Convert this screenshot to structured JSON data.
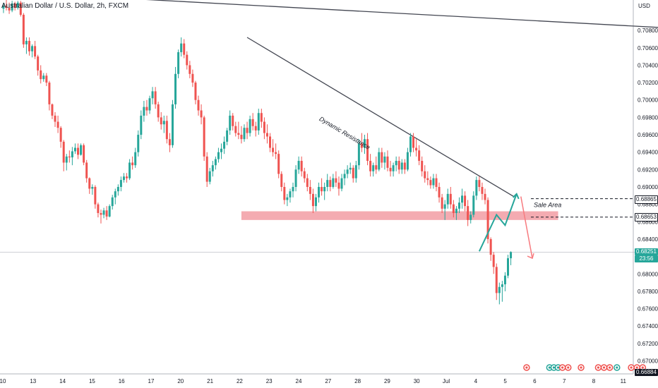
{
  "title": "Australian Dollar / U.S. Dollar, 2h, FXCM",
  "currency": "USD",
  "colors": {
    "up": "#26a69a",
    "down": "#ef5350",
    "line": "#434651",
    "zone": "#f08f97",
    "arrow_up": "#26a69a",
    "arrow_down": "#f77c80",
    "price_badge": "#26a69a",
    "level_badge": "#ffffff",
    "last_badge": "#000000"
  },
  "chart_data": {
    "type": "candlestick",
    "title": "Australian Dollar / U.S. Dollar, 2h, FXCM",
    "ylabel": "USD",
    "ylim": [
      0.6685,
      0.7115
    ],
    "y_ticks": [
      "0.70800",
      "0.70600",
      "0.70400",
      "0.70200",
      "0.70000",
      "0.69800",
      "0.69600",
      "0.69400",
      "0.69200",
      "0.69000",
      "0.68800",
      "0.68600",
      "0.68400",
      "0.68200",
      "0.68000",
      "0.67800",
      "0.67600",
      "0.67400",
      "0.67200",
      "0.67000"
    ],
    "x_ticks": [
      "10",
      "13",
      "14",
      "15",
      "16",
      "17",
      "20",
      "21",
      "22",
      "23",
      "24",
      "27",
      "28",
      "29",
      "30",
      "Jul",
      "4",
      "5",
      "6",
      "7",
      "8",
      "11"
    ],
    "price_labels": {
      "level_1": "0.68865",
      "level_2": "0.68653",
      "current": "0.68251",
      "countdown": "23:56",
      "last": "0.66884"
    },
    "annotations": {
      "trendline_label": "Dynamic Resistance",
      "zone_label": "Sale Area"
    },
    "trendlines": [
      {
        "name": "Dynamic Resistance",
        "from": [
          16.8,
          0.7072
        ],
        "to": [
          35.4,
          0.6889
        ]
      },
      {
        "name": "upper",
        "from": [
          8.1,
          0.7117
        ],
        "to": [
          51.6,
          0.7078
        ]
      }
    ],
    "zone": {
      "from": 16.4,
      "to": 38.5,
      "y_top": 0.6872,
      "y_bottom": 0.6862
    },
    "projection_up": [
      [
        33.0,
        0.6826
      ],
      [
        34.2,
        0.6868
      ],
      [
        34.8,
        0.6856
      ],
      [
        35.6,
        0.6892
      ]
    ],
    "projection_down": [
      [
        35.9,
        0.6889
      ],
      [
        36.7,
        0.6818
      ]
    ],
    "sale_levels": [
      0.68865,
      0.68653
    ],
    "current_price": 0.68251,
    "candles": [
      [
        -0.2,
        0.7105,
        0.7112,
        0.71,
        0.7108
      ],
      [
        0.0,
        0.7108,
        0.7115,
        0.7103,
        0.7106
      ],
      [
        0.2,
        0.7106,
        0.7112,
        0.7099,
        0.7103
      ],
      [
        0.4,
        0.7103,
        0.7114,
        0.7101,
        0.7111
      ],
      [
        0.6,
        0.7111,
        0.7113,
        0.7103,
        0.7106
      ],
      [
        0.8,
        0.7106,
        0.7114,
        0.7104,
        0.7112
      ],
      [
        1.0,
        0.7112,
        0.7114,
        0.7096,
        0.7098
      ],
      [
        1.2,
        0.7098,
        0.71,
        0.706,
        0.7064
      ],
      [
        1.4,
        0.7064,
        0.7072,
        0.7053,
        0.7068
      ],
      [
        1.6,
        0.7068,
        0.7072,
        0.7051,
        0.7056
      ],
      [
        1.8,
        0.7056,
        0.7064,
        0.7049,
        0.7062
      ],
      [
        2.0,
        0.7062,
        0.7068,
        0.7047,
        0.705
      ],
      [
        2.2,
        0.705,
        0.7052,
        0.7028,
        0.7034
      ],
      [
        2.4,
        0.7034,
        0.704,
        0.7019,
        0.7024
      ],
      [
        2.6,
        0.7024,
        0.7031,
        0.7021,
        0.7028
      ],
      [
        2.8,
        0.7028,
        0.7031,
        0.7016,
        0.702
      ],
      [
        3.0,
        0.702,
        0.7022,
        0.6988,
        0.6995
      ],
      [
        3.2,
        0.6995,
        0.6996,
        0.6978,
        0.6982
      ],
      [
        3.4,
        0.6982,
        0.6986,
        0.6969,
        0.6975
      ],
      [
        3.6,
        0.6975,
        0.6982,
        0.6962,
        0.6968
      ],
      [
        3.8,
        0.6968,
        0.697,
        0.6945,
        0.6952
      ],
      [
        4.0,
        0.6952,
        0.6954,
        0.6918,
        0.6928
      ],
      [
        4.2,
        0.6928,
        0.6938,
        0.6919,
        0.6935
      ],
      [
        4.4,
        0.6935,
        0.6942,
        0.6928,
        0.6934
      ],
      [
        4.6,
        0.6934,
        0.6946,
        0.6925,
        0.6941
      ],
      [
        4.8,
        0.6941,
        0.695,
        0.6938,
        0.6945
      ],
      [
        5.0,
        0.6945,
        0.695,
        0.6932,
        0.6937
      ],
      [
        5.2,
        0.6937,
        0.695,
        0.6936,
        0.6948
      ],
      [
        5.4,
        0.6948,
        0.695,
        0.6925,
        0.6928
      ],
      [
        5.6,
        0.6928,
        0.6931,
        0.6905,
        0.691
      ],
      [
        5.8,
        0.691,
        0.6911,
        0.6892,
        0.6898
      ],
      [
        6.0,
        0.6898,
        0.6903,
        0.6891,
        0.69
      ],
      [
        6.2,
        0.69,
        0.6902,
        0.6875,
        0.688
      ],
      [
        6.4,
        0.688,
        0.6882,
        0.6865,
        0.687
      ],
      [
        6.6,
        0.687,
        0.6874,
        0.6858,
        0.6868
      ],
      [
        6.8,
        0.6868,
        0.6876,
        0.6864,
        0.6873
      ],
      [
        7.0,
        0.6873,
        0.6878,
        0.6862,
        0.6866
      ],
      [
        7.2,
        0.6866,
        0.688,
        0.6865,
        0.6878
      ],
      [
        7.4,
        0.6878,
        0.6891,
        0.6874,
        0.6888
      ],
      [
        7.6,
        0.6888,
        0.6898,
        0.688,
        0.6895
      ],
      [
        7.8,
        0.6895,
        0.6903,
        0.689,
        0.69
      ],
      [
        8.0,
        0.69,
        0.6912,
        0.6895,
        0.6908
      ],
      [
        8.2,
        0.6908,
        0.6916,
        0.6905,
        0.6912
      ],
      [
        8.4,
        0.6912,
        0.6916,
        0.6905,
        0.691
      ],
      [
        8.6,
        0.691,
        0.6932,
        0.6908,
        0.6928
      ],
      [
        8.8,
        0.6928,
        0.6935,
        0.692,
        0.6925
      ],
      [
        9.0,
        0.6925,
        0.6945,
        0.6922,
        0.694
      ],
      [
        9.2,
        0.694,
        0.6965,
        0.6935,
        0.696
      ],
      [
        9.4,
        0.696,
        0.6988,
        0.6955,
        0.6982
      ],
      [
        9.6,
        0.6982,
        0.6999,
        0.6975,
        0.6992
      ],
      [
        9.8,
        0.6992,
        0.7,
        0.6982,
        0.6988
      ],
      [
        10.0,
        0.6988,
        0.7005,
        0.6984,
        0.7002
      ],
      [
        10.2,
        0.7002,
        0.7015,
        0.6995,
        0.701
      ],
      [
        10.4,
        0.701,
        0.7015,
        0.699,
        0.6995
      ],
      [
        10.6,
        0.6995,
        0.6998,
        0.6975,
        0.698
      ],
      [
        10.8,
        0.698,
        0.6986,
        0.6966,
        0.6972
      ],
      [
        11.0,
        0.6972,
        0.6982,
        0.6962,
        0.6976
      ],
      [
        11.2,
        0.6976,
        0.6982,
        0.695,
        0.6955
      ],
      [
        11.4,
        0.6955,
        0.6962,
        0.694,
        0.6948
      ],
      [
        11.6,
        0.6948,
        0.7,
        0.6945,
        0.6995
      ],
      [
        11.8,
        0.6995,
        0.7038,
        0.699,
        0.703
      ],
      [
        12.0,
        0.703,
        0.7058,
        0.7025,
        0.7055
      ],
      [
        12.2,
        0.7055,
        0.7072,
        0.705,
        0.7065
      ],
      [
        12.4,
        0.7065,
        0.707,
        0.7048,
        0.7052
      ],
      [
        12.6,
        0.7052,
        0.7056,
        0.7035,
        0.704
      ],
      [
        12.8,
        0.704,
        0.7045,
        0.7025,
        0.703
      ],
      [
        13.0,
        0.703,
        0.7035,
        0.7015,
        0.702
      ],
      [
        13.2,
        0.702,
        0.7022,
        0.6995,
        0.7
      ],
      [
        13.4,
        0.7,
        0.7005,
        0.6982,
        0.6988
      ],
      [
        13.6,
        0.6988,
        0.6995,
        0.6972,
        0.698
      ],
      [
        13.8,
        0.698,
        0.6982,
        0.693,
        0.6935
      ],
      [
        14.0,
        0.6935,
        0.694,
        0.69,
        0.6906
      ],
      [
        14.2,
        0.6906,
        0.6922,
        0.6903,
        0.6918
      ],
      [
        14.4,
        0.6918,
        0.693,
        0.6912,
        0.6925
      ],
      [
        14.6,
        0.6925,
        0.6935,
        0.692,
        0.6932
      ],
      [
        14.8,
        0.6932,
        0.6945,
        0.6928,
        0.694
      ],
      [
        15.0,
        0.694,
        0.695,
        0.6932,
        0.6944
      ],
      [
        15.2,
        0.6944,
        0.6958,
        0.6938,
        0.6952
      ],
      [
        15.4,
        0.6952,
        0.6968,
        0.6948,
        0.6965
      ],
      [
        15.6,
        0.6965,
        0.6988,
        0.696,
        0.6982
      ],
      [
        15.8,
        0.6982,
        0.6985,
        0.6965,
        0.697
      ],
      [
        16.0,
        0.697,
        0.6975,
        0.6958,
        0.6962
      ],
      [
        16.2,
        0.6962,
        0.6975,
        0.6955,
        0.696
      ],
      [
        16.4,
        0.696,
        0.697,
        0.695,
        0.6955
      ],
      [
        16.6,
        0.6955,
        0.6972,
        0.6952,
        0.6968
      ],
      [
        16.8,
        0.6968,
        0.6975,
        0.6955,
        0.6962
      ],
      [
        17.0,
        0.6962,
        0.6982,
        0.6958,
        0.6978
      ],
      [
        17.2,
        0.6978,
        0.6985,
        0.6965,
        0.697
      ],
      [
        17.4,
        0.697,
        0.6975,
        0.6958,
        0.6965
      ],
      [
        17.6,
        0.6965,
        0.699,
        0.696,
        0.6985
      ],
      [
        17.8,
        0.6985,
        0.699,
        0.6968,
        0.6975
      ],
      [
        18.0,
        0.6975,
        0.698,
        0.6955,
        0.6962
      ],
      [
        18.2,
        0.6962,
        0.6972,
        0.695,
        0.6958
      ],
      [
        18.4,
        0.6958,
        0.6962,
        0.694,
        0.6945
      ],
      [
        18.6,
        0.6945,
        0.6955,
        0.6935,
        0.694
      ],
      [
        18.8,
        0.694,
        0.695,
        0.6932,
        0.6938
      ],
      [
        19.0,
        0.6938,
        0.6942,
        0.691,
        0.6915
      ],
      [
        19.2,
        0.6915,
        0.6918,
        0.6895,
        0.69
      ],
      [
        19.4,
        0.69,
        0.6905,
        0.688,
        0.6885
      ],
      [
        19.6,
        0.6885,
        0.6892,
        0.6878,
        0.6888
      ],
      [
        19.8,
        0.6888,
        0.6898,
        0.6882,
        0.6895
      ],
      [
        20.0,
        0.6895,
        0.6905,
        0.6888,
        0.69
      ],
      [
        20.2,
        0.69,
        0.6925,
        0.6895,
        0.692
      ],
      [
        20.4,
        0.692,
        0.6935,
        0.6915,
        0.693
      ],
      [
        20.6,
        0.693,
        0.6935,
        0.6912,
        0.6918
      ],
      [
        20.8,
        0.6918,
        0.6922,
        0.6905,
        0.691
      ],
      [
        21.0,
        0.691,
        0.6915,
        0.6895,
        0.69
      ],
      [
        21.2,
        0.69,
        0.6908,
        0.6885,
        0.6892
      ],
      [
        21.4,
        0.6892,
        0.6898,
        0.687,
        0.6878
      ],
      [
        21.6,
        0.6878,
        0.6892,
        0.6872,
        0.6888
      ],
      [
        21.8,
        0.6888,
        0.6905,
        0.6882,
        0.69
      ],
      [
        22.0,
        0.69,
        0.691,
        0.689,
        0.6895
      ],
      [
        22.2,
        0.6895,
        0.6905,
        0.6885,
        0.69
      ],
      [
        22.4,
        0.69,
        0.6915,
        0.6895,
        0.6908
      ],
      [
        22.6,
        0.6908,
        0.6912,
        0.6895,
        0.69
      ],
      [
        22.8,
        0.69,
        0.6915,
        0.6898,
        0.691
      ],
      [
        23.0,
        0.691,
        0.6918,
        0.69,
        0.6905
      ],
      [
        23.2,
        0.6905,
        0.6912,
        0.689,
        0.6898
      ],
      [
        23.4,
        0.6898,
        0.6915,
        0.6895,
        0.691
      ],
      [
        23.6,
        0.691,
        0.692,
        0.6902,
        0.6915
      ],
      [
        23.8,
        0.6915,
        0.6925,
        0.691,
        0.692
      ],
      [
        24.0,
        0.692,
        0.6928,
        0.6915,
        0.6922
      ],
      [
        24.2,
        0.6922,
        0.6925,
        0.6905,
        0.691
      ],
      [
        24.4,
        0.691,
        0.693,
        0.6905,
        0.6925
      ],
      [
        24.6,
        0.6925,
        0.6955,
        0.692,
        0.695
      ],
      [
        24.8,
        0.695,
        0.6962,
        0.694,
        0.6945
      ],
      [
        25.0,
        0.6945,
        0.696,
        0.6938,
        0.6955
      ],
      [
        25.2,
        0.6955,
        0.6962,
        0.6925,
        0.693
      ],
      [
        25.4,
        0.693,
        0.6938,
        0.6912,
        0.6918
      ],
      [
        25.6,
        0.6918,
        0.6928,
        0.6912,
        0.6925
      ],
      [
        25.8,
        0.6925,
        0.6935,
        0.6915,
        0.692
      ],
      [
        26.0,
        0.692,
        0.6945,
        0.6918,
        0.694
      ],
      [
        26.2,
        0.694,
        0.6945,
        0.6922,
        0.6928
      ],
      [
        26.4,
        0.6928,
        0.694,
        0.692,
        0.6935
      ],
      [
        26.6,
        0.6935,
        0.6942,
        0.6918,
        0.6922
      ],
      [
        26.8,
        0.6922,
        0.693,
        0.6912,
        0.6918
      ],
      [
        27.0,
        0.6918,
        0.6928,
        0.6912,
        0.6925
      ],
      [
        27.2,
        0.6925,
        0.6935,
        0.6918,
        0.693
      ],
      [
        27.4,
        0.693,
        0.6935,
        0.6915,
        0.692
      ],
      [
        27.6,
        0.692,
        0.6932,
        0.6915,
        0.6928
      ],
      [
        27.8,
        0.6928,
        0.6932,
        0.6915,
        0.692
      ],
      [
        28.0,
        0.692,
        0.6945,
        0.6918,
        0.694
      ],
      [
        28.2,
        0.694,
        0.6962,
        0.6935,
        0.6958
      ],
      [
        28.4,
        0.6958,
        0.6962,
        0.694,
        0.6945
      ],
      [
        28.6,
        0.6945,
        0.6955,
        0.6935,
        0.6942
      ],
      [
        28.8,
        0.6942,
        0.6948,
        0.6925,
        0.693
      ],
      [
        29.0,
        0.693,
        0.6935,
        0.6912,
        0.6918
      ],
      [
        29.2,
        0.6918,
        0.6925,
        0.6905,
        0.691
      ],
      [
        29.4,
        0.691,
        0.6918,
        0.6902,
        0.6908
      ],
      [
        29.6,
        0.6908,
        0.6912,
        0.6898,
        0.6902
      ],
      [
        29.8,
        0.6902,
        0.6915,
        0.6898,
        0.691
      ],
      [
        30.0,
        0.691,
        0.6915,
        0.6895,
        0.69
      ],
      [
        30.2,
        0.69,
        0.6905,
        0.6882,
        0.6888
      ],
      [
        30.4,
        0.6888,
        0.6892,
        0.687,
        0.6875
      ],
      [
        30.6,
        0.6875,
        0.6885,
        0.6862,
        0.688
      ],
      [
        30.8,
        0.688,
        0.6898,
        0.6875,
        0.6892
      ],
      [
        31.0,
        0.6892,
        0.69,
        0.6875,
        0.688
      ],
      [
        31.2,
        0.688,
        0.6885,
        0.6865,
        0.687
      ],
      [
        31.4,
        0.687,
        0.6878,
        0.6862,
        0.6875
      ],
      [
        31.6,
        0.6875,
        0.6888,
        0.687,
        0.6882
      ],
      [
        31.8,
        0.6882,
        0.6898,
        0.6875,
        0.689
      ],
      [
        32.0,
        0.689,
        0.6895,
        0.6872,
        0.6878
      ],
      [
        32.2,
        0.6878,
        0.6885,
        0.6855,
        0.6862
      ],
      [
        32.4,
        0.6862,
        0.6872,
        0.6858,
        0.6868
      ],
      [
        32.6,
        0.6868,
        0.6895,
        0.6865,
        0.689
      ],
      [
        32.8,
        0.689,
        0.6912,
        0.6885,
        0.6908
      ],
      [
        33.0,
        0.6908,
        0.6912,
        0.6895,
        0.69
      ],
      [
        33.2,
        0.69,
        0.6905,
        0.6885,
        0.6892
      ],
      [
        33.4,
        0.6892,
        0.6898,
        0.688,
        0.6885
      ],
      [
        33.6,
        0.6885,
        0.6888,
        0.6835,
        0.684
      ],
      [
        33.8,
        0.684,
        0.6842,
        0.6815,
        0.6822
      ],
      [
        34.0,
        0.6822,
        0.6825,
        0.68,
        0.6808
      ],
      [
        34.2,
        0.6808,
        0.6812,
        0.677,
        0.6778
      ],
      [
        34.4,
        0.6778,
        0.679,
        0.6765,
        0.6785
      ],
      [
        34.6,
        0.6785,
        0.6792,
        0.6768,
        0.6788
      ],
      [
        34.8,
        0.6788,
        0.6802,
        0.678,
        0.6798
      ],
      [
        35.0,
        0.6798,
        0.6822,
        0.6795,
        0.6818
      ],
      [
        35.2,
        0.6818,
        0.6826,
        0.681,
        0.6825
      ]
    ],
    "event_markers": [
      {
        "x": 36.3,
        "color": "#ef5350"
      },
      {
        "x": 37.9,
        "color": "#26a69a"
      },
      {
        "x": 38.2,
        "color": "#26a69a"
      },
      {
        "x": 38.5,
        "color": "#26a69a"
      },
      {
        "x": 38.8,
        "color": "#ef5350"
      },
      {
        "x": 39.2,
        "color": "#ef5350"
      },
      {
        "x": 40.1,
        "color": "#ef5350"
      },
      {
        "x": 41.3,
        "color": "#ef5350"
      },
      {
        "x": 41.7,
        "color": "#ef5350"
      },
      {
        "x": 42.1,
        "color": "#ef5350"
      },
      {
        "x": 42.6,
        "color": "#26a69a"
      },
      {
        "x": 43.6,
        "color": "#ef5350"
      },
      {
        "x": 44.0,
        "color": "#ef5350"
      },
      {
        "x": 44.4,
        "color": "#ef5350"
      },
      {
        "x": 46.3,
        "color": "#ef5350"
      }
    ]
  }
}
